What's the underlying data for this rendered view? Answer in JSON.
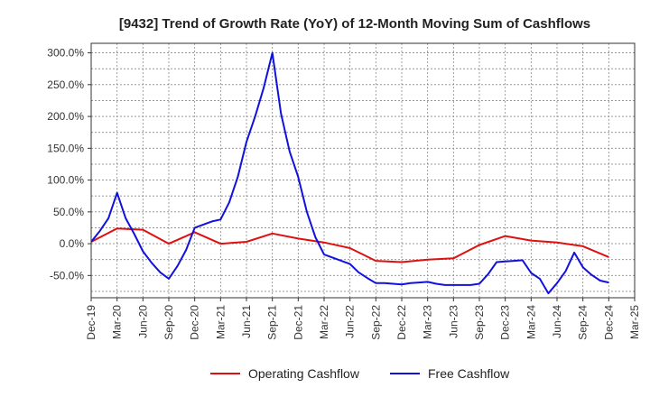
{
  "chart_data": {
    "type": "line",
    "title": "[9432]  Trend of Growth Rate (YoY) of 12-Month Moving Sum of Cashflows",
    "xlabel": "",
    "ylabel": "",
    "ylim": [
      -85,
      315
    ],
    "y_ticks": [
      300,
      250,
      200,
      150,
      100,
      50,
      0,
      -50
    ],
    "y_tick_labels": [
      "300.0%",
      "250.0%",
      "200.0%",
      "150.0%",
      "100.0%",
      "50.0%",
      "0.0%",
      "-50.0%"
    ],
    "x_tick_labels": [
      "Dec-19",
      "Mar-20",
      "Jun-20",
      "Sep-20",
      "Dec-20",
      "Mar-21",
      "Jun-21",
      "Sep-21",
      "Dec-21",
      "Mar-22",
      "Jun-22",
      "Sep-22",
      "Dec-22",
      "Mar-23",
      "Jun-23",
      "Sep-23",
      "Dec-23",
      "Mar-24",
      "Jun-24",
      "Sep-24",
      "Dec-24",
      "Mar-25"
    ],
    "grid": true,
    "legend_position": "bottom",
    "series": [
      {
        "name": "Operating Cashflow",
        "color": "#dd1111",
        "points": [
          [
            0,
            3
          ],
          [
            3,
            24
          ],
          [
            6,
            22
          ],
          [
            9,
            0
          ],
          [
            12,
            18
          ],
          [
            15,
            0
          ],
          [
            18,
            3
          ],
          [
            21,
            16
          ],
          [
            24,
            8
          ],
          [
            27,
            2
          ],
          [
            30,
            -7
          ],
          [
            33,
            -27
          ],
          [
            36,
            -29
          ],
          [
            39,
            -25
          ],
          [
            42,
            -23
          ],
          [
            45,
            -2
          ],
          [
            48,
            12
          ],
          [
            51,
            5
          ],
          [
            54,
            2
          ],
          [
            57,
            -4
          ],
          [
            60,
            -21
          ]
        ]
      },
      {
        "name": "Free Cashflow",
        "color": "#1111dd",
        "points": [
          [
            0,
            3
          ],
          [
            1,
            20
          ],
          [
            2,
            40
          ],
          [
            3,
            80
          ],
          [
            4,
            40
          ],
          [
            5,
            15
          ],
          [
            6,
            -12
          ],
          [
            7,
            -30
          ],
          [
            8,
            -45
          ],
          [
            9,
            -55
          ],
          [
            10,
            -35
          ],
          [
            11,
            -10
          ],
          [
            12,
            25
          ],
          [
            13,
            30
          ],
          [
            14,
            35
          ],
          [
            15,
            38
          ],
          [
            16,
            65
          ],
          [
            17,
            105
          ],
          [
            18,
            160
          ],
          [
            19,
            200
          ],
          [
            20,
            245
          ],
          [
            21,
            300
          ],
          [
            22,
            205
          ],
          [
            23,
            145
          ],
          [
            24,
            105
          ],
          [
            25,
            50
          ],
          [
            26,
            10
          ],
          [
            27,
            -17
          ],
          [
            28,
            -22
          ],
          [
            29,
            -27
          ],
          [
            30,
            -32
          ],
          [
            31,
            -45
          ],
          [
            32,
            -54
          ],
          [
            33,
            -62
          ],
          [
            34,
            -62
          ],
          [
            35,
            -63
          ],
          [
            36,
            -64
          ],
          [
            37,
            -62
          ],
          [
            38,
            -61
          ],
          [
            39,
            -60
          ],
          [
            40,
            -63
          ],
          [
            41,
            -65
          ],
          [
            42,
            -65
          ],
          [
            43,
            -65
          ],
          [
            44,
            -65
          ],
          [
            45,
            -63
          ],
          [
            46,
            -48
          ],
          [
            47,
            -29
          ],
          [
            48,
            -28
          ],
          [
            49,
            -27
          ],
          [
            50,
            -26
          ],
          [
            51,
            -46
          ],
          [
            52,
            -55
          ],
          [
            53,
            -78
          ],
          [
            54,
            -62
          ],
          [
            55,
            -43
          ],
          [
            56,
            -14
          ],
          [
            57,
            -37
          ],
          [
            58,
            -49
          ],
          [
            59,
            -58
          ],
          [
            60,
            -61
          ]
        ]
      }
    ]
  }
}
